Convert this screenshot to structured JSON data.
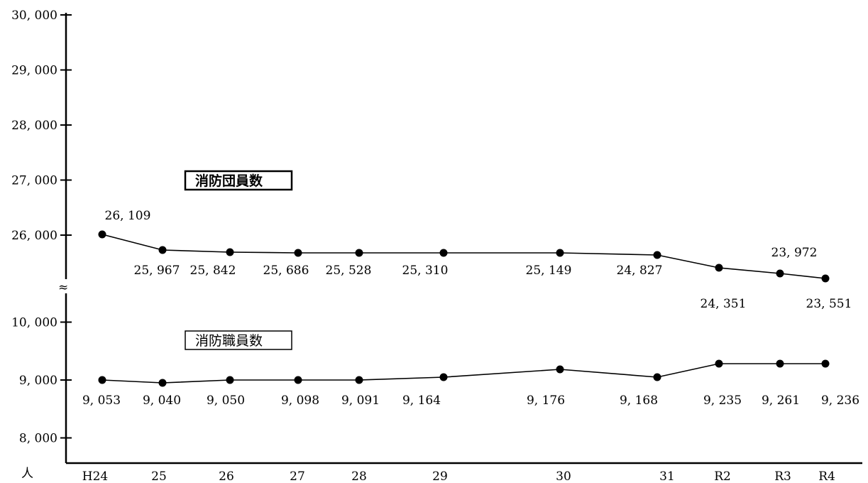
{
  "chart_data": {
    "type": "line",
    "categories": [
      "H24",
      "25",
      "26",
      "27",
      "28",
      "29",
      "30",
      "31",
      "R2",
      "R3",
      "R4"
    ],
    "y_unit": "人",
    "break_symbol": "≈",
    "series": [
      {
        "name": "消防団員数",
        "values": [
          26109,
          25967,
          25842,
          25686,
          25528,
          25310,
          25149,
          24827,
          24351,
          23972,
          23551
        ],
        "labels": [
          "26, 109",
          "25, 967",
          "25, 842",
          "25, 686",
          "25, 528",
          "25, 310",
          "25, 149",
          "24, 827",
          "24, 351",
          "23, 972",
          "23, 551"
        ],
        "upper_ticks": [
          {
            "value": 26000,
            "label": "26, 000"
          },
          {
            "value": 27000,
            "label": "27, 000"
          },
          {
            "value": 28000,
            "label": "28, 000"
          },
          {
            "value": 29000,
            "label": "29, 000"
          },
          {
            "value": 30000,
            "label": "30, 000"
          }
        ]
      },
      {
        "name": "消防職員数",
        "values": [
          9053,
          9040,
          9050,
          9098,
          9091,
          9164,
          9176,
          9168,
          9235,
          9261,
          9236
        ],
        "labels": [
          "9, 053",
          "9, 040",
          "9, 050",
          "9, 098",
          "9, 091",
          "9, 164",
          "9, 176",
          "9, 168",
          "9, 235",
          "9, 261",
          "9, 236"
        ],
        "lower_ticks": [
          {
            "value": 8000,
            "label": "8, 000"
          },
          {
            "value": 9000,
            "label": "9, 000"
          },
          {
            "value": 10000,
            "label": "10, 000"
          }
        ]
      }
    ],
    "grid": false
  }
}
